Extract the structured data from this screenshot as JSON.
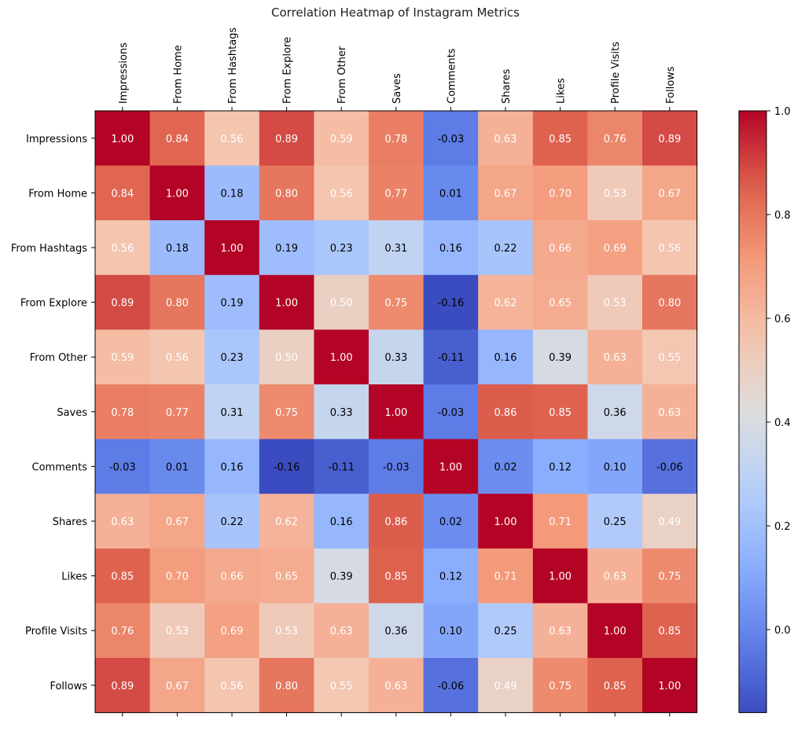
{
  "chart_data": {
    "type": "heatmap",
    "title": "Correlation Heatmap of Instagram Metrics",
    "colormap": "coolwarm",
    "row_labels": [
      "Impressions",
      "From Home",
      "From Hashtags",
      "From Explore",
      "From Other",
      "Saves",
      "Comments",
      "Shares",
      "Likes",
      "Profile Visits",
      "Follows"
    ],
    "col_labels": [
      "Impressions",
      "From Home",
      "From Hashtags",
      "From Explore",
      "From Other",
      "Saves",
      "Comments",
      "Shares",
      "Likes",
      "Profile Visits",
      "Follows"
    ],
    "values": [
      [
        1.0,
        0.84,
        0.56,
        0.89,
        0.59,
        0.78,
        -0.03,
        0.63,
        0.85,
        0.76,
        0.89
      ],
      [
        0.84,
        1.0,
        0.18,
        0.8,
        0.56,
        0.77,
        0.01,
        0.67,
        0.7,
        0.53,
        0.67
      ],
      [
        0.56,
        0.18,
        1.0,
        0.19,
        0.23,
        0.31,
        0.16,
        0.22,
        0.66,
        0.69,
        0.56
      ],
      [
        0.89,
        0.8,
        0.19,
        1.0,
        0.5,
        0.75,
        -0.16,
        0.62,
        0.65,
        0.53,
        0.8
      ],
      [
        0.59,
        0.56,
        0.23,
        0.5,
        1.0,
        0.33,
        -0.11,
        0.16,
        0.39,
        0.63,
        0.55
      ],
      [
        0.78,
        0.77,
        0.31,
        0.75,
        0.33,
        1.0,
        -0.03,
        0.86,
        0.85,
        0.36,
        0.63
      ],
      [
        -0.03,
        0.01,
        0.16,
        -0.16,
        -0.11,
        -0.03,
        1.0,
        0.02,
        0.12,
        0.1,
        -0.06
      ],
      [
        0.63,
        0.67,
        0.22,
        0.62,
        0.16,
        0.86,
        0.02,
        1.0,
        0.71,
        0.25,
        0.49
      ],
      [
        0.85,
        0.7,
        0.66,
        0.65,
        0.39,
        0.85,
        0.12,
        0.71,
        1.0,
        0.63,
        0.75
      ],
      [
        0.76,
        0.53,
        0.69,
        0.53,
        0.63,
        0.36,
        0.1,
        0.25,
        0.63,
        1.0,
        0.85
      ],
      [
        0.89,
        0.67,
        0.56,
        0.8,
        0.55,
        0.63,
        -0.06,
        0.49,
        0.75,
        0.85,
        1.0
      ]
    ],
    "colorbar": {
      "range": [
        -0.16,
        1.0
      ],
      "ticks": [
        0.0,
        0.2,
        0.4,
        0.6,
        0.8,
        1.0
      ],
      "tick_labels": [
        "0.0",
        "0.2",
        "0.4",
        "0.6",
        "0.8",
        "1.0"
      ]
    }
  }
}
